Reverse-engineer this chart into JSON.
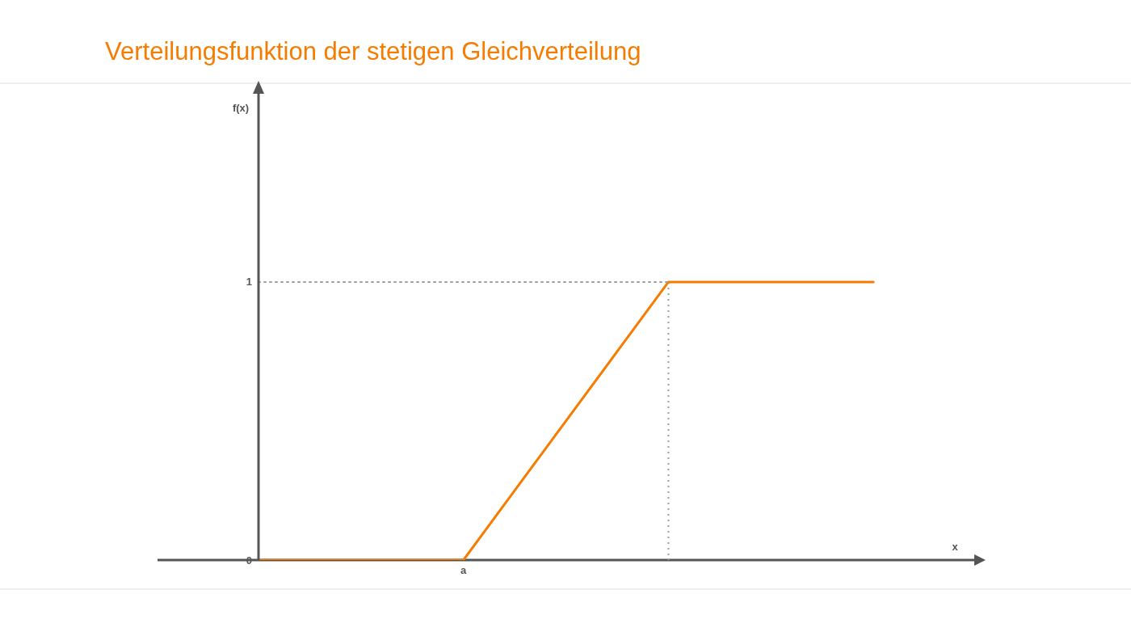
{
  "chart_data": {
    "type": "line",
    "title": "Verteilungsfunktion der stetigen Gleichverteilung",
    "xlabel": "x",
    "ylabel": "f(x)",
    "ylim": [
      0,
      1.7
    ],
    "yticks": [
      0,
      1
    ],
    "marker": "none",
    "categories": [
      null,
      null,
      null,
      null,
      "a",
      null,
      null,
      null,
      null,
      null,
      null,
      null,
      null,
      null,
      null
    ],
    "series": [
      {
        "color": "#f57c00",
        "values": [
          0,
          0,
          0,
          0,
          0,
          0.25,
          0.5,
          0.75,
          1,
          1,
          1,
          1,
          1,
          null,
          null
        ],
        "line_style": "solid"
      },
      {
        "color": "#9e9e9e",
        "values": [
          1,
          1,
          1,
          1,
          1,
          1,
          1,
          1,
          1,
          null,
          null,
          null,
          null,
          null,
          null
        ],
        "line_style": "dotted"
      }
    ]
  }
}
